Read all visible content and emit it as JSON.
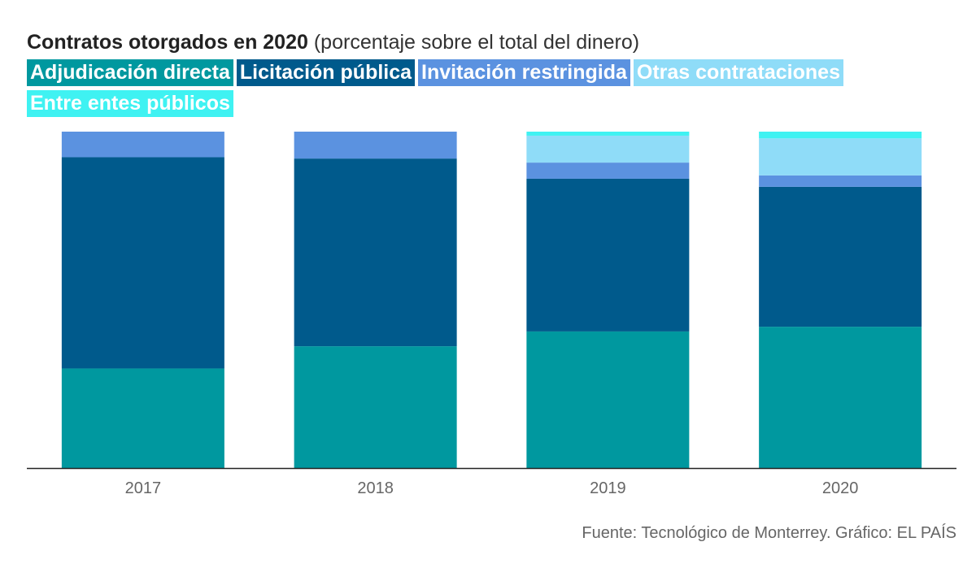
{
  "title": {
    "main": "Contratos otorgados en 2020",
    "subtitle": "(porcentaje sobre el total del dinero)"
  },
  "source": "Fuente: Tecnológico de Monterrey. Gráfico: EL PAÍS",
  "chart_data": {
    "type": "bar",
    "stacked": true,
    "normalized": true,
    "categories": [
      "2017",
      "2018",
      "2019",
      "2020"
    ],
    "series": [
      {
        "name": "Adjudicación directa",
        "color": "#00989f",
        "values": [
          29.6,
          36.2,
          40.6,
          42.0
        ]
      },
      {
        "name": "Licitación pública",
        "color": "#005a8c",
        "values": [
          62.8,
          55.8,
          45.4,
          41.6
        ]
      },
      {
        "name": "Invitación restringida",
        "color": "#5b92e0",
        "values": [
          7.6,
          8.0,
          4.8,
          3.4
        ]
      },
      {
        "name": "Otras contrataciones",
        "color": "#8fdcf8",
        "values": [
          0.0,
          0.0,
          8.0,
          11.0
        ]
      },
      {
        "name": "Entre entes públicos",
        "color": "#3ff2f2",
        "values": [
          0.0,
          0.0,
          1.2,
          2.0
        ]
      }
    ],
    "ylim": [
      0,
      100
    ],
    "grid": false,
    "legend": "top"
  }
}
